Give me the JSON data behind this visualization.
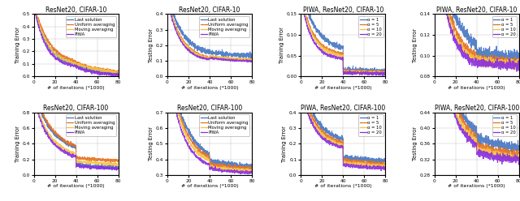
{
  "titles": [
    [
      "ResNet20, CIFAR-10",
      "ResNet20, CIFAR-10",
      "PIWA, ResNet20, CIFAR-10",
      "PIWA, ResNet20, CIFAR-10"
    ],
    [
      "ResNet20, CIFAR-100",
      "ResNet20, CIFAR-100",
      "PIWA, ResNet20, CIFAR-100",
      "PIWA, ResNet20, CIFAR-100"
    ]
  ],
  "ylabels": [
    [
      "Training Error",
      "Testing Error",
      "Training Error",
      "Testing Error"
    ],
    [
      "Training Error",
      "Testing Error",
      "Training Error",
      "Testing Error"
    ]
  ],
  "ylims": [
    [
      [
        0,
        0.5
      ],
      [
        0,
        0.4
      ],
      [
        0,
        0.15
      ],
      [
        0.08,
        0.14
      ]
    ],
    [
      [
        0,
        0.8
      ],
      [
        0.3,
        0.7
      ],
      [
        0,
        0.4
      ],
      [
        0.28,
        0.44
      ]
    ]
  ],
  "yticks": [
    [
      [
        0,
        0.1,
        0.2,
        0.3,
        0.4,
        0.5
      ],
      [
        0,
        0.1,
        0.2,
        0.3,
        0.4
      ],
      [
        0,
        0.05,
        0.1,
        0.15
      ],
      [
        0.08,
        0.1,
        0.12,
        0.14
      ]
    ],
    [
      [
        0,
        0.2,
        0.4,
        0.6,
        0.8
      ],
      [
        0.3,
        0.4,
        0.5,
        0.6,
        0.7
      ],
      [
        0,
        0.1,
        0.2,
        0.3,
        0.4
      ],
      [
        0.28,
        0.32,
        0.36,
        0.4,
        0.44
      ]
    ]
  ],
  "legend_groups": [
    [
      "Last solution",
      "Uniform averaging",
      "Moving averaging",
      "PIWA"
    ],
    [
      "α = 1",
      "α = 5",
      "α = 10",
      "α = 20"
    ]
  ],
  "colors": [
    "#4475c2",
    "#e5701e",
    "#f5c242",
    "#8a2be2"
  ],
  "xlabel": "# of iterations (*1000)",
  "xlim": [
    0,
    80
  ],
  "xticks": [
    0,
    20,
    40,
    60,
    80
  ]
}
